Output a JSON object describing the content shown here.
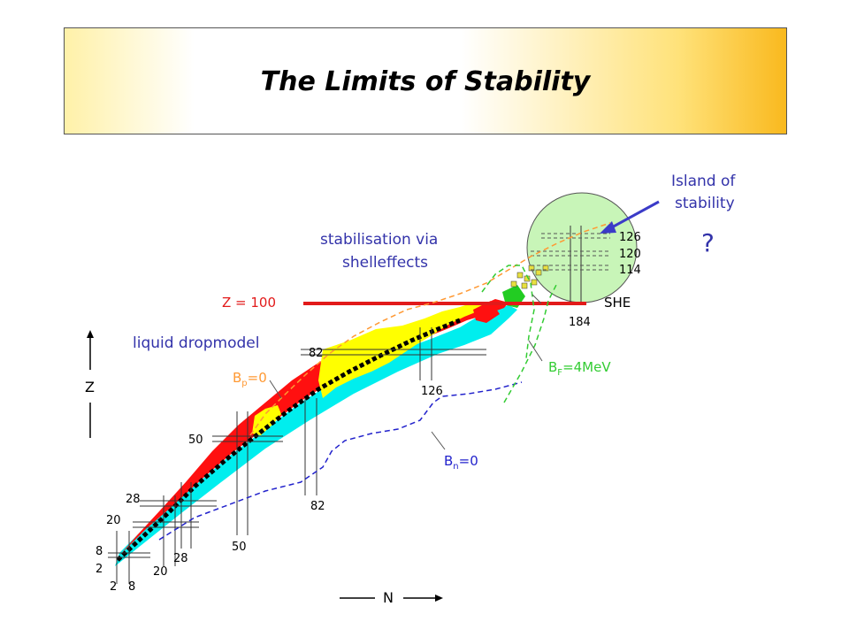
{
  "title": "The Limits of  Stability",
  "labels": {
    "island_line1": "Island of",
    "island_line2": "stability",
    "question": "?",
    "stab_line1": "stabilisation via",
    "stab_line2": "shelleffects",
    "z100": "Z = 100",
    "she": "SHE",
    "liquid": "liquid dropmodel",
    "bp": "B",
    "bp_sub": "p",
    "bp_rest": "=0",
    "bf": "B",
    "bf_sub": "F",
    "bf_rest": "=4MeV",
    "bn": "B",
    "bn_sub": "n",
    "bn_rest": "=0",
    "z_axis": "Z",
    "n_axis": "N"
  },
  "magic_numbers": {
    "z_126": "126",
    "z_120": "120",
    "z_114": "114",
    "n_184": "184",
    "z_82": "82",
    "n_126": "126",
    "z_50": "50",
    "n_82": "82",
    "z_28": "28",
    "z_20": "20",
    "n_50": "50",
    "z_8": "8",
    "z_2": "2",
    "n_28": "28",
    "n_20": "20",
    "n_2": "2",
    "n_8": "8"
  },
  "colors": {
    "red_line": "#e21a1a",
    "blue_text": "#3333aa",
    "stable": "#000000",
    "beta_plus": "#ff1010",
    "beta_minus": "#00eeee",
    "alpha": "#ffff00",
    "fission": "#22cc22",
    "island": "#c8f5b8",
    "proton_drip": "#ff9933",
    "neutron_drip": "#2222cc",
    "fission_barrier": "#33cc33"
  }
}
